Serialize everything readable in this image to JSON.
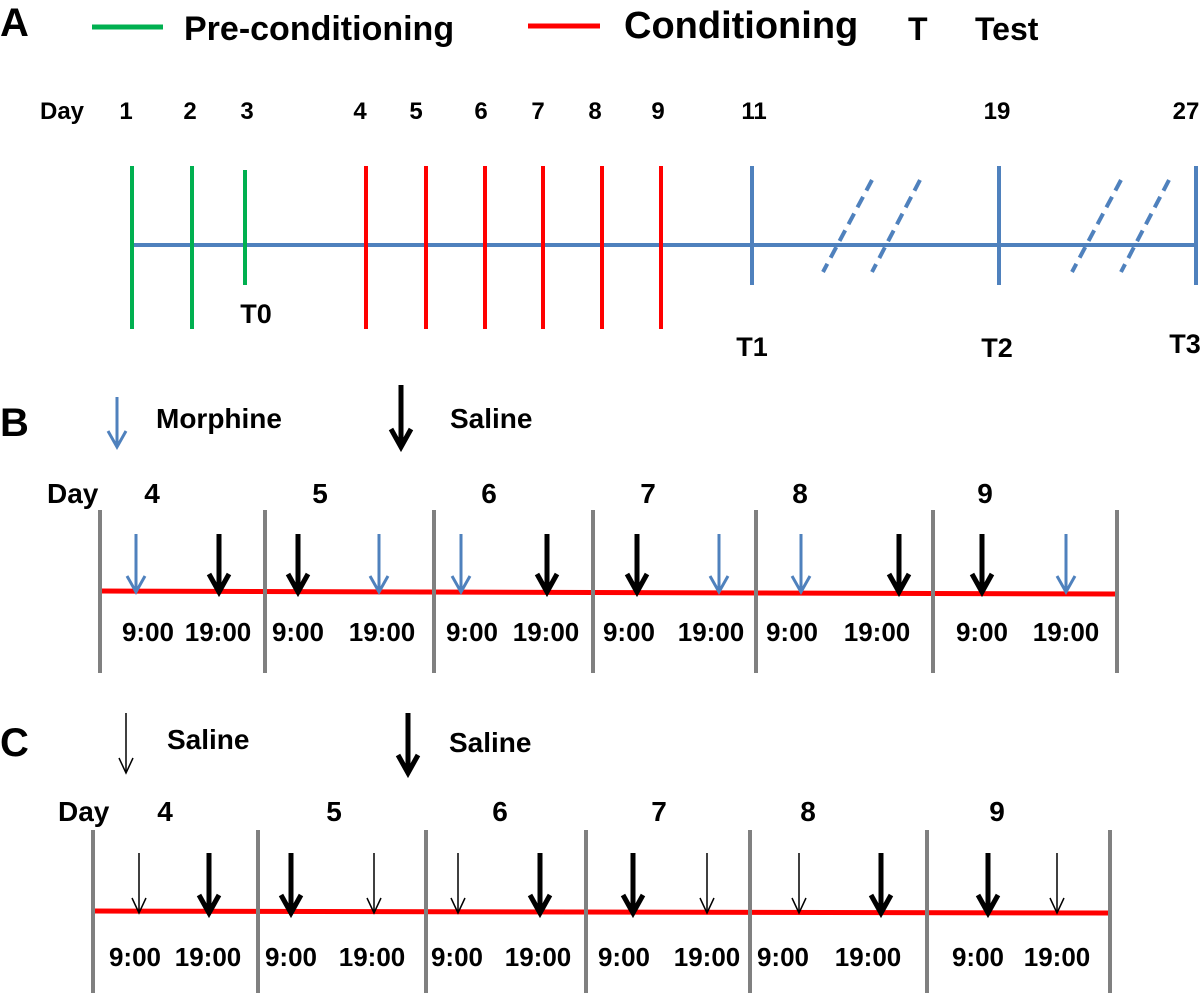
{
  "colors": {
    "pre": "#00b050",
    "cond": "#ff0000",
    "axis": "#4f81bd",
    "morphine": "#4f81bd",
    "saline": "#000000",
    "divider": "#808080"
  },
  "panel_a": {
    "letter": "A",
    "legend": {
      "pre_label": "Pre-conditioning",
      "cond_label": "Conditioning",
      "test_symbol": "T",
      "test_label": "Test"
    },
    "day_label": "Day",
    "days": [
      "1",
      "2",
      "3",
      "4",
      "5",
      "6",
      "7",
      "8",
      "9",
      "11",
      "19",
      "27"
    ],
    "day_types": [
      "pre",
      "pre",
      "pre",
      "cond",
      "cond",
      "cond",
      "cond",
      "cond",
      "cond",
      "test",
      "test",
      "test"
    ],
    "tests": [
      {
        "label": "T0",
        "day": "3"
      },
      {
        "label": "T1",
        "day": "11"
      },
      {
        "label": "T2",
        "day": "19"
      },
      {
        "label": "T3",
        "day": "27"
      }
    ]
  },
  "panel_b": {
    "letter": "B",
    "legend": {
      "morphine_label": "Morphine",
      "saline_label": "Saline"
    },
    "day_label": "Day",
    "days": [
      "4",
      "5",
      "6",
      "7",
      "8",
      "9"
    ],
    "time_am": "9:00",
    "time_pm": "19:00",
    "injections": [
      [
        "morphine",
        "saline"
      ],
      [
        "saline",
        "morphine"
      ],
      [
        "morphine",
        "saline"
      ],
      [
        "saline",
        "morphine"
      ],
      [
        "morphine",
        "saline"
      ],
      [
        "saline",
        "morphine"
      ]
    ]
  },
  "panel_c": {
    "letter": "C",
    "legend": {
      "thin_label": "Saline",
      "thick_label": "Saline"
    },
    "day_label": "Day",
    "days": [
      "4",
      "5",
      "6",
      "7",
      "8",
      "9"
    ],
    "time_am": "9:00",
    "time_pm": "19:00",
    "injections": [
      [
        "thin",
        "thick"
      ],
      [
        "thick",
        "thin"
      ],
      [
        "thin",
        "thick"
      ],
      [
        "thick",
        "thin"
      ],
      [
        "thin",
        "thick"
      ],
      [
        "thick",
        "thin"
      ]
    ]
  }
}
